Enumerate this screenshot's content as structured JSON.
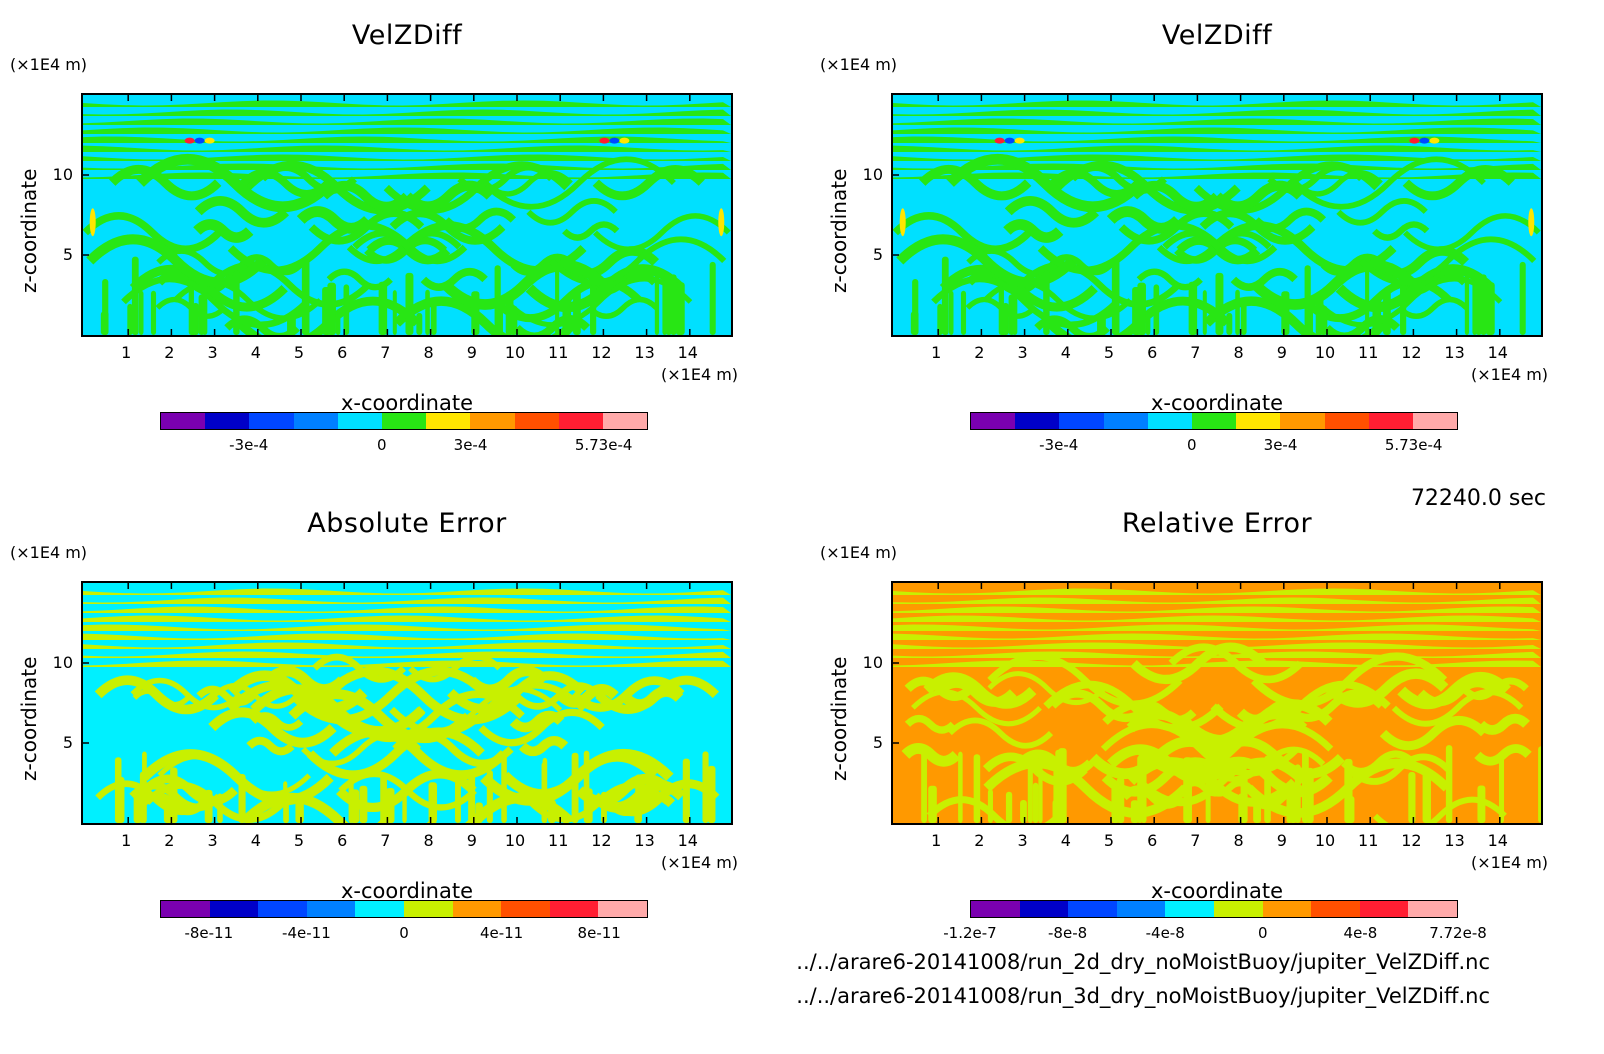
{
  "time_label": "72240.0 sec",
  "files": [
    "../../arare6-20141008/run_2d_dry_noMoistBuoy/jupiter_VelZDiff.nc",
    "../../arare6-20141008/run_3d_dry_noMoistBuoy/jupiter_VelZDiff.nc"
  ],
  "chart_data": [
    {
      "type": "heatmap",
      "title": "VelZDiff",
      "xlabel": "x-coordinate",
      "ylabel": "z-coordinate",
      "xunit": "(×1E4 m)",
      "yunit": "(×1E4 m)",
      "xlim": [
        0,
        15
      ],
      "ylim": [
        0,
        15
      ],
      "xticks": [
        "1",
        "2",
        "3",
        "4",
        "5",
        "6",
        "7",
        "8",
        "9",
        "10",
        "11",
        "12",
        "13",
        "14"
      ],
      "yticks": [
        "5",
        "10"
      ],
      "colors": [
        "#7a00b0",
        "#0000c8",
        "#0046ff",
        "#0080ff",
        "#00e0ff",
        "#28e614",
        "#ffe600",
        "#ff9900",
        "#ff5000",
        "#ff1e32",
        "#ffaaaa"
      ],
      "colorbar_labels": [
        {
          "pos": 2,
          "text": "-3e-4"
        },
        {
          "pos": 5,
          "text": "0"
        },
        {
          "pos": 7,
          "text": "3e-4"
        },
        {
          "pos": 10,
          "text": "5.73e-4"
        }
      ],
      "pattern_colors": [
        "#00e0ff",
        "#28e614"
      ]
    },
    {
      "type": "heatmap",
      "title": "VelZDiff",
      "xlabel": "x-coordinate",
      "ylabel": "z-coordinate",
      "xunit": "(×1E4 m)",
      "yunit": "(×1E4 m)",
      "xlim": [
        0,
        15
      ],
      "ylim": [
        0,
        15
      ],
      "xticks": [
        "1",
        "2",
        "3",
        "4",
        "5",
        "6",
        "7",
        "8",
        "9",
        "10",
        "11",
        "12",
        "13",
        "14"
      ],
      "yticks": [
        "5",
        "10"
      ],
      "colors": [
        "#7a00b0",
        "#0000c8",
        "#0046ff",
        "#0080ff",
        "#00e0ff",
        "#28e614",
        "#ffe600",
        "#ff9900",
        "#ff5000",
        "#ff1e32",
        "#ffaaaa"
      ],
      "colorbar_labels": [
        {
          "pos": 2,
          "text": "-3e-4"
        },
        {
          "pos": 5,
          "text": "0"
        },
        {
          "pos": 7,
          "text": "3e-4"
        },
        {
          "pos": 10,
          "text": "5.73e-4"
        }
      ],
      "pattern_colors": [
        "#00e0ff",
        "#28e614"
      ]
    },
    {
      "type": "heatmap",
      "title": "Absolute Error",
      "xlabel": "x-coordinate",
      "ylabel": "z-coordinate",
      "xunit": "(×1E4 m)",
      "yunit": "(×1E4 m)",
      "xlim": [
        0,
        15
      ],
      "ylim": [
        0,
        15
      ],
      "xticks": [
        "1",
        "2",
        "3",
        "4",
        "5",
        "6",
        "7",
        "8",
        "9",
        "10",
        "11",
        "12",
        "13",
        "14"
      ],
      "yticks": [
        "5",
        "10"
      ],
      "colors": [
        "#7a00b0",
        "#0000c8",
        "#0046ff",
        "#0080ff",
        "#00f0ff",
        "#c8f000",
        "#ff9900",
        "#ff5000",
        "#ff1e32",
        "#ffaaaa"
      ],
      "colorbar_labels": [
        {
          "pos": 1,
          "text": "-8e-11"
        },
        {
          "pos": 3,
          "text": "-4e-11"
        },
        {
          "pos": 5,
          "text": "0"
        },
        {
          "pos": 7,
          "text": "4e-11"
        },
        {
          "pos": 9,
          "text": "8e-11"
        }
      ],
      "pattern_colors": [
        "#00f0ff",
        "#c8f000"
      ]
    },
    {
      "type": "heatmap",
      "title": "Relative Error",
      "xlabel": "x-coordinate",
      "ylabel": "z-coordinate",
      "xunit": "(×1E4 m)",
      "yunit": "(×1E4 m)",
      "xlim": [
        0,
        15
      ],
      "ylim": [
        0,
        15
      ],
      "xticks": [
        "1",
        "2",
        "3",
        "4",
        "5",
        "6",
        "7",
        "8",
        "9",
        "10",
        "11",
        "12",
        "13",
        "14"
      ],
      "yticks": [
        "5",
        "10"
      ],
      "colors": [
        "#7a00b0",
        "#0000c8",
        "#0046ff",
        "#0080ff",
        "#00f0ff",
        "#c8f000",
        "#ff9900",
        "#ff5000",
        "#ff1e32",
        "#ffaaaa"
      ],
      "colorbar_labels": [
        {
          "pos": 0,
          "text": "-1.2e-7"
        },
        {
          "pos": 2,
          "text": "-8e-8"
        },
        {
          "pos": 4,
          "text": "-4e-8"
        },
        {
          "pos": 6,
          "text": "0"
        },
        {
          "pos": 8,
          "text": "4e-8"
        },
        {
          "pos": 10,
          "text": "7.72e-8"
        }
      ],
      "pattern_colors": [
        "#ff9900",
        "#c8f000"
      ]
    }
  ]
}
